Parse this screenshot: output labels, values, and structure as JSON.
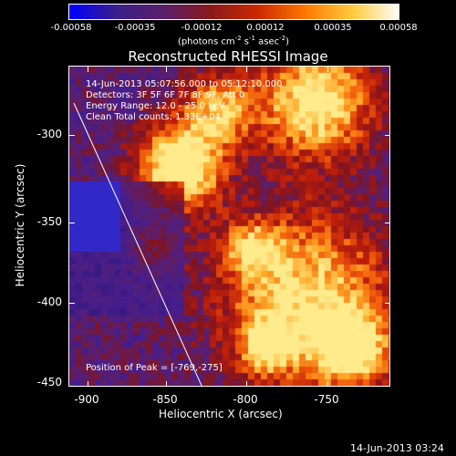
{
  "colorbar": {
    "ticks": [
      "-0.00058",
      "-0.00035",
      "-0.00012",
      "0.00012",
      "0.00035",
      "0.00058"
    ],
    "units_prefix": "(photons cm",
    "units_exp1": "-2",
    "units_mid": " s",
    "units_exp2": "-1",
    "units_mid2": " asec",
    "units_exp3": "-2",
    "units_suffix": ")",
    "stops": [
      "#0000ff",
      "#3a1f8a",
      "#5a1f6a",
      "#8a1a1a",
      "#cc2a00",
      "#ff7a00",
      "#ffcc40",
      "#ffffff"
    ]
  },
  "title": "Reconstructed RHESSI Image",
  "info": {
    "line1": "14-Jun-2013 05:07:56.000 to 05:12:10.000",
    "line2": "Detectors: 3F 5F 6F 7F 8F 9F, Att 0",
    "line3": "Energy Range: 12.0 - 25.0 keV",
    "line4": "Clean    Total counts: 1.33E+04",
    "peak": "Position of Peak = [-769,-275]"
  },
  "axes": {
    "ylabel": "Heliocentric Y (arcsec)",
    "xlabel": "Heliocentric X (arcsec)",
    "yticks": [
      "-300",
      "-350",
      "-400",
      "-450"
    ],
    "xticks": [
      "-900",
      "-850",
      "-800",
      "-750"
    ]
  },
  "timestamp": "14-Jun-2013 03:24"
}
